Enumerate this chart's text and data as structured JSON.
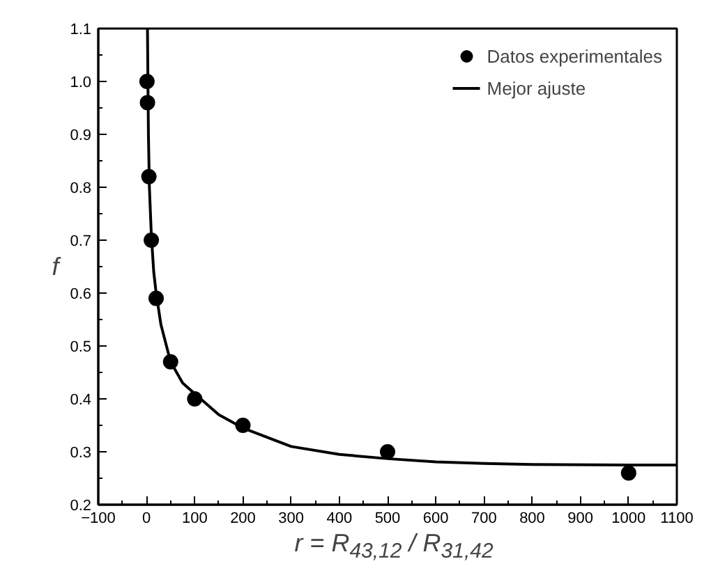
{
  "chart_data": {
    "type": "scatter",
    "xlabel": "r = R$_{43,12}$ / R$_{31,42}$",
    "ylabel": "f",
    "xlim": [
      -100,
      1100
    ],
    "xticks": [
      -100,
      0,
      100,
      200,
      300,
      400,
      500,
      600,
      700,
      800,
      900,
      1000,
      1100
    ],
    "ylim": [
      0.2,
      1.1
    ],
    "yticks": [
      0.2,
      0.3,
      0.4,
      0.5,
      0.6,
      0.7,
      0.8,
      0.9,
      {
        "value": 1.0,
        "label": "1.0"
      },
      1.1
    ],
    "grid": false,
    "legend": "top right",
    "series": [
      {
        "name": "Datos experimentales",
        "marker": "circle",
        "color": "#000000",
        "x": [
          1,
          2,
          5,
          10,
          20,
          50,
          100,
          200,
          500,
          1000
        ],
        "values": [
          1.0,
          0.96,
          0.82,
          0.7,
          0.59,
          0.47,
          0.4,
          0.35,
          0.3,
          0.26
        ]
      },
      {
        "name": "Mejor ajuste",
        "type": "line",
        "marker": "none",
        "color": "#000000",
        "line_style": "solid",
        "x": [
          2,
          4,
          6,
          10,
          15,
          20,
          30,
          50,
          75,
          100,
          150,
          200,
          300,
          400,
          500,
          600,
          700,
          800,
          1000,
          1100
        ],
        "values": [
          1.1,
          0.9,
          0.8,
          0.71,
          0.64,
          0.6,
          0.54,
          0.47,
          0.43,
          0.41,
          0.37,
          0.345,
          0.31,
          0.295,
          0.287,
          0.281,
          0.278,
          0.276,
          0.275,
          0.275
        ]
      }
    ]
  }
}
